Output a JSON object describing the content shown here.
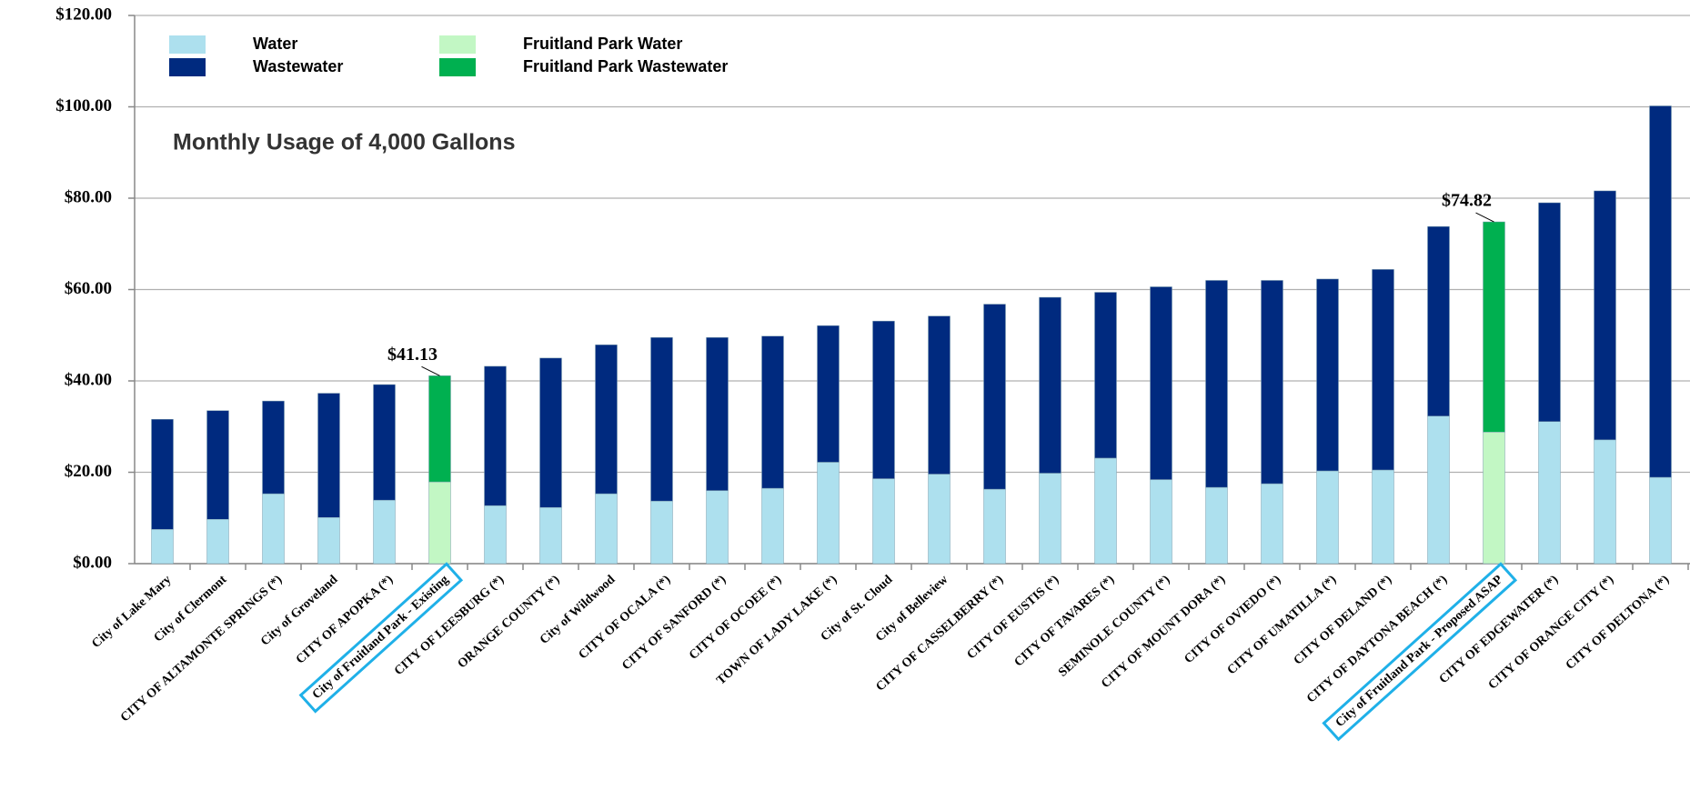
{
  "chart_data": {
    "type": "stacked_bar",
    "subtitle": "Monthly Usage of 4,000 Gallons",
    "categories": [
      "City of Lake Mary",
      "City of Clermont",
      "CITY OF ALTAMONTE SPRINGS (*)",
      "City of Groveland",
      "CITY OF APOPKA (*)",
      "City of Fruitland Park - Existing",
      "CITY OF LEESBURG (*)",
      "ORANGE COUNTY (*)",
      "City of Wildwood",
      "CITY OF OCALA (*)",
      "CITY OF SANFORD (*)",
      "CITY OF OCOEE (*)",
      "TOWN OF LADY LAKE (*)",
      "City of St. Cloud",
      "City of Belleview",
      "CITY OF CASSELBERRY (*)",
      "CITY OF EUSTIS (*)",
      "CITY OF TAVARES (*)",
      "SEMINOLE COUNTY (*)",
      "CITY OF MOUNT DORA (*)",
      "CITY OF OVIEDO (*)",
      "CITY OF UMATILLA (*)",
      "CITY OF DELAND (*)",
      "CITY OF DAYTONA BEACH (*)",
      "City of Fruitland Park - Proposed ASAP",
      "CITY OF EDGEWATER (*)",
      "CITY OF ORANGE CITY (*)",
      "CITY OF DELTONA (*)"
    ],
    "series": [
      {
        "name": "Water",
        "color": "#ade0ee",
        "values": [
          7.5,
          9.7,
          15.3,
          10.1,
          13.9,
          null,
          12.7,
          12.3,
          15.3,
          13.7,
          16.0,
          16.5,
          22.2,
          18.6,
          19.6,
          16.3,
          19.8,
          23.1,
          18.4,
          16.7,
          17.5,
          20.3,
          20.5,
          32.3,
          null,
          31.1,
          27.1,
          18.9
        ]
      },
      {
        "name": "Wastewater",
        "color": "#002a7f",
        "values": [
          24.1,
          23.8,
          20.3,
          27.2,
          25.3,
          null,
          30.5,
          32.7,
          32.6,
          35.8,
          33.5,
          33.3,
          29.9,
          34.5,
          34.6,
          40.5,
          38.5,
          36.3,
          42.2,
          45.3,
          44.5,
          42.0,
          43.9,
          41.5,
          null,
          47.9,
          54.5,
          81.3
        ]
      },
      {
        "name": "Fruitland Park Water",
        "color": "#c2f7c4",
        "values": [
          null,
          null,
          null,
          null,
          null,
          17.9,
          null,
          null,
          null,
          null,
          null,
          null,
          null,
          null,
          null,
          null,
          null,
          null,
          null,
          null,
          null,
          null,
          null,
          null,
          28.8,
          null,
          null,
          null
        ]
      },
      {
        "name": "Fruitland Park Wastewater",
        "color": "#00b050",
        "values": [
          null,
          null,
          null,
          null,
          null,
          23.23,
          null,
          null,
          null,
          null,
          null,
          null,
          null,
          null,
          null,
          null,
          null,
          null,
          null,
          null,
          null,
          null,
          null,
          null,
          46.02,
          null,
          null,
          null
        ]
      }
    ],
    "annotations": [
      "$41.13",
      "$74.82"
    ],
    "ylim": [
      0,
      120
    ],
    "yticks": [
      {
        "value": 0,
        "label": "$0.00"
      },
      {
        "value": 20,
        "label": "$20.00"
      },
      {
        "value": 40,
        "label": "$40.00"
      },
      {
        "value": 60,
        "label": "$60.00"
      },
      {
        "value": 80,
        "label": "$80.00"
      },
      {
        "value": 100,
        "label": "$100.00"
      },
      {
        "value": 120,
        "label": "$120.00"
      }
    ],
    "grid": true,
    "legend": "top-left"
  }
}
